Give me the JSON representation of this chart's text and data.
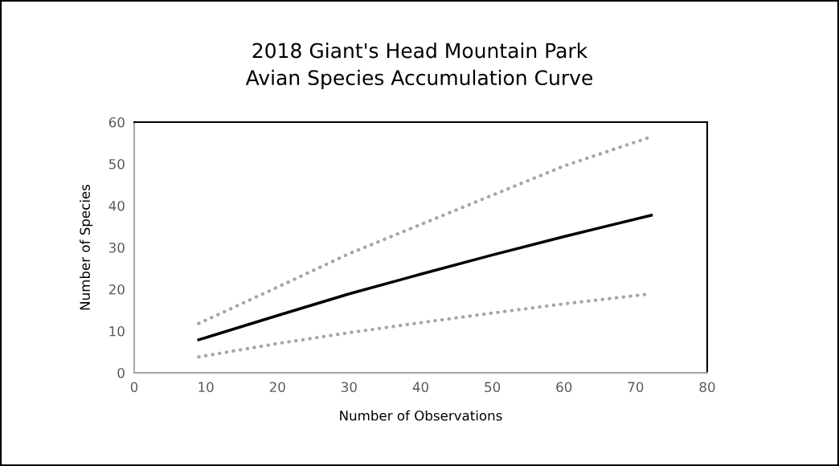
{
  "chart_data": {
    "type": "line",
    "title": "2018 Giant's Head Mountain Park\nAvian Species Accumulation Curve",
    "xlabel": "Number of Observations",
    "ylabel": "Number of Species",
    "xlim": [
      0,
      80
    ],
    "xticks": [
      0,
      10,
      20,
      30,
      40,
      50,
      60,
      70,
      80
    ],
    "ylim": [
      0,
      60
    ],
    "yticks": [
      0,
      10,
      20,
      30,
      40,
      50,
      60
    ],
    "grid": false,
    "marker": "none",
    "series": [
      {
        "color": "#a6a6a6",
        "line_style": "dotted",
        "x": [
          9,
          20,
          30,
          40,
          50,
          60,
          72.2
        ],
        "values": [
          11.8,
          20.5,
          28.5,
          35.5,
          42.5,
          49.5,
          56.5
        ]
      },
      {
        "color": "#000000",
        "line_style": "solid",
        "x": [
          9,
          20,
          30,
          40,
          50,
          60,
          72.2
        ],
        "values": [
          7.9,
          13.7,
          18.9,
          23.6,
          28.2,
          32.6,
          37.7
        ]
      },
      {
        "color": "#a6a6a6",
        "line_style": "dotted",
        "x": [
          9,
          20,
          30,
          40,
          50,
          60,
          71.6
        ],
        "values": [
          3.8,
          7.0,
          9.6,
          12.0,
          14.3,
          16.5,
          18.8
        ]
      }
    ]
  }
}
